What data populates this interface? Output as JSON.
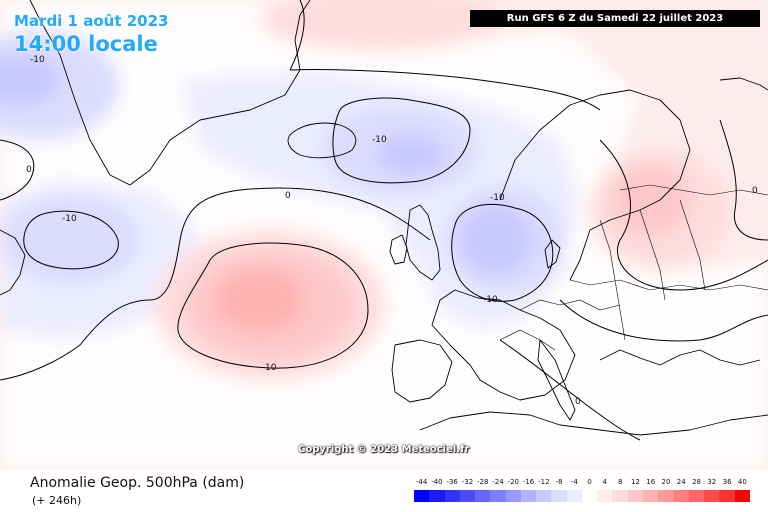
{
  "header": {
    "date": "Mardi 1 août 2023",
    "time": "14:00 locale",
    "run": "Run GFS 6 Z du Samedi 22 juillet 2023"
  },
  "copyright": "Copyright © 2023 Meteociel.fr",
  "footer": {
    "variable": "Anomalie Geop. 500hPa (dam)",
    "lead_time": "(+ 246h)"
  },
  "legend": {
    "labels": [
      "-44",
      "-40",
      "-36",
      "-32",
      "-28",
      "-24",
      "-20",
      "-16",
      "-12",
      "-8",
      "-4",
      "0",
      "4",
      "8",
      "12",
      "16",
      "20",
      "24",
      "28",
      "32",
      "36",
      "40"
    ],
    "colors": [
      "#0000ff",
      "#1a1aff",
      "#3333ff",
      "#4d4dff",
      "#6666ff",
      "#7f7fff",
      "#9999ff",
      "#b2b2ff",
      "#c8c8ff",
      "#dcdcff",
      "#ececff",
      "#ffffff",
      "#ffecec",
      "#ffdcdc",
      "#ffc8c8",
      "#ffb2b2",
      "#ff9999",
      "#ff7f7f",
      "#ff6666",
      "#ff4d4d",
      "#ff3333",
      "#ff0000"
    ]
  },
  "contour_labels": [
    {
      "id": "m10-nw",
      "text": "-10"
    },
    {
      "id": "m10-iceland",
      "text": "-10"
    },
    {
      "id": "m10-west",
      "text": "-10"
    },
    {
      "id": "m10-north-sea",
      "text": "-10"
    },
    {
      "id": "m10-germany",
      "text": "-10"
    },
    {
      "id": "p10-azores",
      "text": "10"
    },
    {
      "id": "z-west",
      "text": "0"
    },
    {
      "id": "z-atl",
      "text": "0"
    },
    {
      "id": "z-east",
      "text": "0"
    },
    {
      "id": "z-med",
      "text": "0"
    }
  ],
  "colors": {
    "title_text": "#22aaff",
    "run_box_bg": "#000000",
    "land_line": "#000000"
  }
}
